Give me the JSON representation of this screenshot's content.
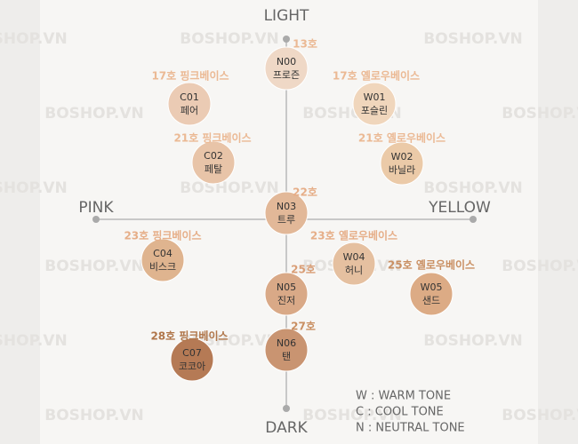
{
  "axes": {
    "top": "LIGHT",
    "bottom": "DARK",
    "left": "PINK",
    "right": "YELLOW"
  },
  "watermark": "BOSHOP.VN",
  "nodes": [
    {
      "code": "N00",
      "name": "프로즌",
      "label": "13호",
      "color": "#efd8c6",
      "label_color": "#ebb994"
    },
    {
      "code": "C01",
      "name": "페어",
      "label": "17호 핑크베이스",
      "color": "#ebcbb4",
      "label_color": "#ebb994"
    },
    {
      "code": "W01",
      "name": "포슬린",
      "label": "17호 옐로우베이스",
      "color": "#f0d6bc",
      "label_color": "#ebb994"
    },
    {
      "code": "C02",
      "name": "페탈",
      "label": "21호 핑크베이스",
      "color": "#e8c4a8",
      "label_color": "#ebb994"
    },
    {
      "code": "W02",
      "name": "바닐라",
      "label": "21호 옐로우베이스",
      "color": "#ebcaa8",
      "label_color": "#ebb994"
    },
    {
      "code": "N03",
      "name": "트루",
      "label": "22호",
      "color": "#e2b898",
      "label_color": "#e6ae88"
    },
    {
      "code": "C04",
      "name": "비스크",
      "label": "23호 핑크베이스",
      "color": "#dfb48f",
      "label_color": "#e6ae88"
    },
    {
      "code": "W04",
      "name": "허니",
      "label": "23호 옐로우베이스",
      "color": "#e5c0a0",
      "label_color": "#e6ae88"
    },
    {
      "code": "N05",
      "name": "진저",
      "label": "25호",
      "color": "#d9a987",
      "label_color": "#d99e76"
    },
    {
      "code": "W05",
      "name": "샌드",
      "label": "25호 옐로우베이스",
      "color": "#dcab85",
      "label_color": "#c98f62"
    },
    {
      "code": "N06",
      "name": "탠",
      "label": "27호",
      "color": "#c99471",
      "label_color": "#c98f62"
    },
    {
      "code": "C07",
      "name": "코코아",
      "label": "28호 핑크베이스",
      "color": "#b57a55",
      "label_color": "#b0764a"
    }
  ],
  "legend": [
    "W : WARM TONE",
    "C : COOL TONE",
    "N : NEUTRAL TONE"
  ]
}
